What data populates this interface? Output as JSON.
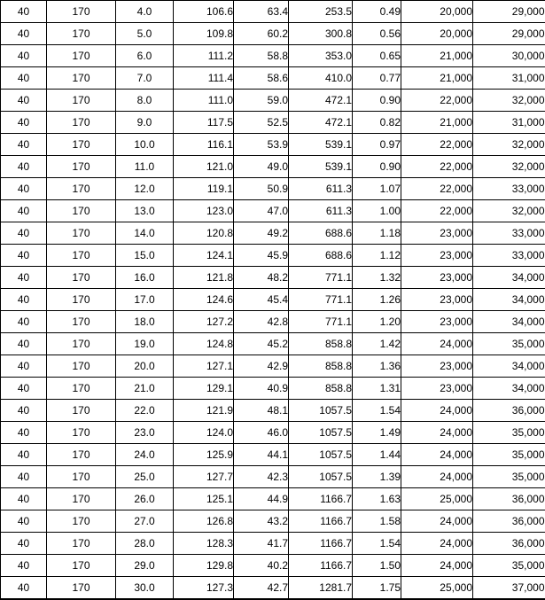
{
  "colors": {
    "cyan": "#ccffff",
    "green": "#ccff99",
    "mint": "#ccffcc",
    "grid": "#000000",
    "text": "#000000",
    "cell_white": "#ffffff"
  },
  "table": {
    "num_rows": 27,
    "num_cols": 9,
    "rows": [
      [
        "40",
        "170",
        "4.0",
        "106.6",
        "63.4",
        "253.5",
        "0.49",
        "20,000",
        "29,000"
      ],
      [
        "40",
        "170",
        "5.0",
        "109.8",
        "60.2",
        "300.8",
        "0.56",
        "20,000",
        "29,000"
      ],
      [
        "40",
        "170",
        "6.0",
        "111.2",
        "58.8",
        "353.0",
        "0.65",
        "21,000",
        "30,000"
      ],
      [
        "40",
        "170",
        "7.0",
        "111.4",
        "58.6",
        "410.0",
        "0.77",
        "21,000",
        "31,000"
      ],
      [
        "40",
        "170",
        "8.0",
        "111.0",
        "59.0",
        "472.1",
        "0.90",
        "22,000",
        "32,000"
      ],
      [
        "40",
        "170",
        "9.0",
        "117.5",
        "52.5",
        "472.1",
        "0.82",
        "21,000",
        "31,000"
      ],
      [
        "40",
        "170",
        "10.0",
        "116.1",
        "53.9",
        "539.1",
        "0.97",
        "22,000",
        "32,000"
      ],
      [
        "40",
        "170",
        "11.0",
        "121.0",
        "49.0",
        "539.1",
        "0.90",
        "22,000",
        "32,000"
      ],
      [
        "40",
        "170",
        "12.0",
        "119.1",
        "50.9",
        "611.3",
        "1.07",
        "22,000",
        "33,000"
      ],
      [
        "40",
        "170",
        "13.0",
        "123.0",
        "47.0",
        "611.3",
        "1.00",
        "22,000",
        "32,000"
      ],
      [
        "40",
        "170",
        "14.0",
        "120.8",
        "49.2",
        "688.6",
        "1.18",
        "23,000",
        "33,000"
      ],
      [
        "40",
        "170",
        "15.0",
        "124.1",
        "45.9",
        "688.6",
        "1.12",
        "23,000",
        "33,000"
      ],
      [
        "40",
        "170",
        "16.0",
        "121.8",
        "48.2",
        "771.1",
        "1.32",
        "23,000",
        "34,000"
      ],
      [
        "40",
        "170",
        "17.0",
        "124.6",
        "45.4",
        "771.1",
        "1.26",
        "23,000",
        "34,000"
      ],
      [
        "40",
        "170",
        "18.0",
        "127.2",
        "42.8",
        "771.1",
        "1.20",
        "23,000",
        "34,000"
      ],
      [
        "40",
        "170",
        "19.0",
        "124.8",
        "45.2",
        "858.8",
        "1.42",
        "24,000",
        "35,000"
      ],
      [
        "40",
        "170",
        "20.0",
        "127.1",
        "42.9",
        "858.8",
        "1.36",
        "23,000",
        "34,000"
      ],
      [
        "40",
        "170",
        "21.0",
        "129.1",
        "40.9",
        "858.8",
        "1.31",
        "23,000",
        "34,000"
      ],
      [
        "40",
        "170",
        "22.0",
        "121.9",
        "48.1",
        "1057.5",
        "1.54",
        "24,000",
        "36,000"
      ],
      [
        "40",
        "170",
        "23.0",
        "124.0",
        "46.0",
        "1057.5",
        "1.49",
        "24,000",
        "35,000"
      ],
      [
        "40",
        "170",
        "24.0",
        "125.9",
        "44.1",
        "1057.5",
        "1.44",
        "24,000",
        "35,000"
      ],
      [
        "40",
        "170",
        "25.0",
        "127.7",
        "42.3",
        "1057.5",
        "1.39",
        "24,000",
        "35,000"
      ],
      [
        "40",
        "170",
        "26.0",
        "125.1",
        "44.9",
        "1166.7",
        "1.63",
        "25,000",
        "36,000"
      ],
      [
        "40",
        "170",
        "27.0",
        "126.8",
        "43.2",
        "1166.7",
        "1.58",
        "24,000",
        "36,000"
      ],
      [
        "40",
        "170",
        "28.0",
        "128.3",
        "41.7",
        "1166.7",
        "1.54",
        "24,000",
        "36,000"
      ],
      [
        "40",
        "170",
        "29.0",
        "129.8",
        "40.2",
        "1166.7",
        "1.50",
        "24,000",
        "35,000"
      ],
      [
        "40",
        "170",
        "30.0",
        "127.3",
        "42.7",
        "1281.7",
        "1.75",
        "25,000",
        "37,000"
      ]
    ]
  }
}
